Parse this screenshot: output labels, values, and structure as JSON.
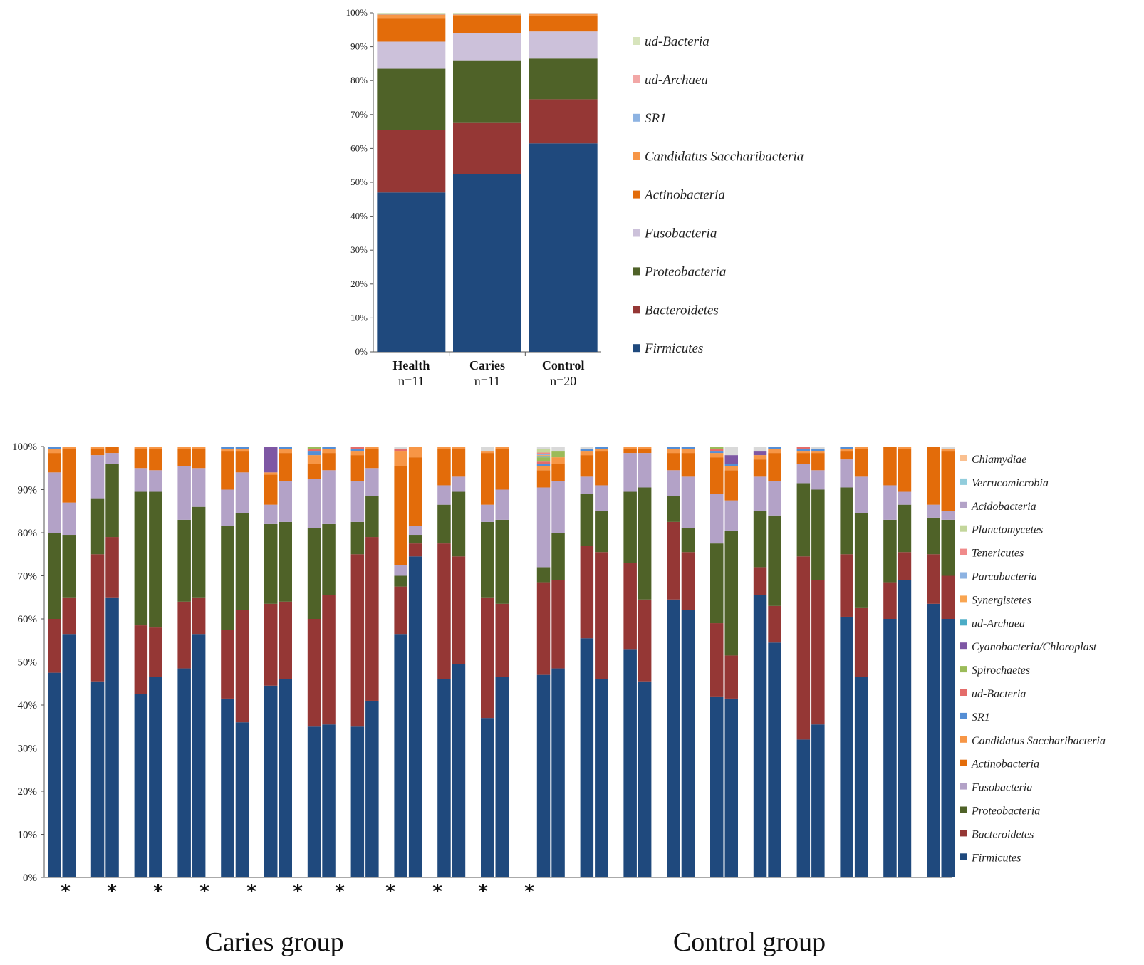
{
  "chart_data": [
    {
      "type": "bar",
      "stacked": true,
      "y_unit": "%",
      "ylim": [
        0,
        100
      ],
      "yticks": [
        "0%",
        "10%",
        "20%",
        "30%",
        "40%",
        "50%",
        "60%",
        "70%",
        "80%",
        "90%",
        "100%"
      ],
      "categories": [
        "Health",
        "Caries",
        "Control"
      ],
      "category_sublabels": [
        "n=11",
        "n=11",
        "n=20"
      ],
      "legend_placement": "right",
      "series": [
        {
          "name": "Firmicutes",
          "color": "#1f497d",
          "values": [
            47.0,
            52.5,
            61.5
          ]
        },
        {
          "name": "Bacteroidetes",
          "color": "#953735",
          "values": [
            18.5,
            15.0,
            13.0
          ]
        },
        {
          "name": "Proteobacteria",
          "color": "#4f6228",
          "values": [
            18.0,
            18.5,
            12.0
          ]
        },
        {
          "name": "Fusobacteria",
          "color": "#ccc1da",
          "values": [
            8.0,
            8.0,
            8.0
          ]
        },
        {
          "name": "Actinobacteria",
          "color": "#e36c0a",
          "values": [
            7.0,
            5.0,
            4.5
          ]
        },
        {
          "name": "Candidatus Saccharibacteria",
          "color": "#f79646",
          "values": [
            1.0,
            0.5,
            0.6
          ]
        },
        {
          "name": "SR1",
          "color": "#8db3e2",
          "values": [
            0.2,
            0.2,
            0.2
          ]
        },
        {
          "name": "ud-Archaea",
          "color": "#f2a7a6",
          "values": [
            0.1,
            0.1,
            0.1
          ]
        },
        {
          "name": "ud-Bacteria",
          "color": "#d7e4bc",
          "values": [
            0.2,
            0.2,
            0.1
          ]
        }
      ]
    },
    {
      "type": "bar",
      "stacked": true,
      "y_unit": "%",
      "ylim": [
        0,
        100
      ],
      "yticks": [
        "0%",
        "10%",
        "20%",
        "30%",
        "40%",
        "50%",
        "60%",
        "70%",
        "80%",
        "90%",
        "100%"
      ],
      "legend_placement": "right",
      "series_names": [
        "Firmicutes",
        "Bacteroidetes",
        "Proteobacteria",
        "Fusobacteria",
        "Actinobacteria",
        "Candidatus Saccharibacteria",
        "SR1",
        "ud-Bacteria",
        "Spirochaetes",
        "Cyanobacteria/Chloroplast",
        "ud-Archaea",
        "Synergistetes",
        "Parcubacteria",
        "Tenericutes",
        "Planctomycetes",
        "Acidobacteria",
        "Verrucomicrobia",
        "Chlamydiae"
      ],
      "series_colors": [
        "#1f497d",
        "#953735",
        "#4f6228",
        "#b3a2c7",
        "#e36c0a",
        "#f79646",
        "#558ed5",
        "#e46c6a",
        "#9bbb59",
        "#7e57a4",
        "#4bacc6",
        "#f9a551",
        "#8db3e2",
        "#f08a8a",
        "#c3d69b",
        "#b3a2c7",
        "#92cddc",
        "#fac090"
      ],
      "groups": [
        "Caries group",
        "Control group"
      ],
      "stars": [
        "*",
        "*",
        "*",
        "*",
        "*",
        "*",
        "*",
        "*",
        "*",
        "*",
        "*"
      ],
      "pairs": [
        {
          "group": 0,
          "bars": [
            [
              47.5,
              12.5,
              20,
              14,
              4.5,
              1,
              0.5
            ],
            [
              56.5,
              8.5,
              14.5,
              7.5,
              12.5,
              0.5,
              0
            ]
          ]
        },
        {
          "group": 0,
          "bars": [
            [
              45.5,
              29.5,
              13,
              10,
              1.5,
              0.5,
              0
            ],
            [
              65,
              14,
              17,
              2.5,
              1.5,
              0,
              0
            ]
          ]
        },
        {
          "group": 0,
          "bars": [
            [
              42.5,
              16,
              31,
              5.5,
              4.5,
              0.5,
              0
            ],
            [
              46.5,
              11.5,
              31.5,
              5,
              5,
              0.5,
              0
            ]
          ]
        },
        {
          "group": 0,
          "bars": [
            [
              48.5,
              15.5,
              19,
              12.5,
              4,
              0.5,
              0
            ],
            [
              56.5,
              8.5,
              21,
              9,
              4.5,
              0.5,
              0
            ]
          ]
        },
        {
          "group": 0,
          "bars": [
            [
              41.5,
              16,
              24,
              8.5,
              9,
              0.5,
              0.5
            ],
            [
              36,
              26,
              22.5,
              9.5,
              5,
              0.5,
              0.5
            ]
          ]
        },
        {
          "group": 0,
          "bars": [
            [
              44.5,
              19,
              18.5,
              4.5,
              7,
              0.5,
              0,
              0,
              0,
              6
            ],
            [
              46,
              18,
              18.5,
              9.5,
              6.5,
              1,
              0.5
            ]
          ]
        },
        {
          "group": 0,
          "bars": [
            [
              35,
              25,
              21,
              11.5,
              3.5,
              2,
              1,
              0.5,
              0.5
            ],
            [
              35.5,
              30,
              16.5,
              12.5,
              4,
              1,
              0.5
            ]
          ]
        },
        {
          "group": 0,
          "bars": [
            [
              35,
              40,
              7.5,
              9.5,
              6,
              1,
              0.5,
              0.5
            ],
            [
              41,
              38,
              9.5,
              6.5,
              4.5,
              0.5,
              0
            ]
          ]
        },
        {
          "group": 0,
          "bars": [
            [
              56.5,
              11,
              2.5,
              2.5,
              23,
              3.5,
              0,
              0.5
            ],
            [
              74.5,
              3,
              2,
              2,
              16,
              2.5,
              0
            ]
          ]
        },
        {
          "group": 0,
          "bars": [
            [
              46,
              31.5,
              9,
              4.5,
              8.5,
              0.5,
              0
            ],
            [
              49.5,
              25,
              15,
              3.5,
              6.5,
              0.5,
              0
            ]
          ]
        },
        {
          "group": 0,
          "bars": [
            [
              37,
              28,
              17.5,
              4,
              12,
              0.5,
              0
            ],
            [
              46.5,
              17,
              19.5,
              7,
              9.5,
              0.5,
              0
            ]
          ]
        },
        {
          "group": 1,
          "bars": [
            [
              47,
              21.5,
              3.5,
              18.5,
              4,
              1,
              0.5,
              0.5,
              1,
              0,
              0.3,
              0.2,
              0.3,
              0.3,
              0.8
            ],
            [
              48.5,
              20.5,
              11,
              12,
              4,
              1.5,
              0,
              0,
              1.5
            ]
          ]
        },
        {
          "group": 1,
          "bars": [
            [
              55.5,
              21.5,
              12,
              4,
              5,
              1,
              0.5
            ],
            [
              46,
              29.5,
              9.5,
              6,
              8,
              0.5,
              0.5
            ]
          ]
        },
        {
          "group": 1,
          "bars": [
            [
              53,
              20,
              16.5,
              9,
              1,
              0.5,
              0
            ],
            [
              45.5,
              19,
              26,
              8,
              1,
              0.5,
              0
            ]
          ]
        },
        {
          "group": 1,
          "bars": [
            [
              64.5,
              18,
              6,
              6,
              4,
              1,
              0.5
            ],
            [
              62,
              13.5,
              5.5,
              12,
              5.5,
              1,
              0.5
            ]
          ]
        },
        {
          "group": 1,
          "bars": [
            [
              42,
              17,
              18.5,
              11.5,
              8.5,
              1,
              0.5,
              0.5,
              0.5
            ],
            [
              41.5,
              10,
              29,
              7,
              7,
              1,
              0.5,
              0,
              0,
              2
            ]
          ]
        },
        {
          "group": 1,
          "bars": [
            [
              65.5,
              6.5,
              13,
              8,
              4,
              1,
              0,
              0,
              0,
              1
            ],
            [
              54.5,
              8.5,
              21,
              8,
              6.5,
              1,
              0.5
            ]
          ]
        },
        {
          "group": 1,
          "bars": [
            [
              32,
              42.5,
              17,
              4.5,
              2.5,
              0.5,
              0.5,
              0.5
            ],
            [
              35.5,
              33.5,
              21,
              4.5,
              4,
              0.5,
              0.5
            ]
          ]
        },
        {
          "group": 1,
          "bars": [
            [
              60.5,
              14.5,
              15.5,
              6.5,
              2,
              0.5,
              0.5
            ],
            [
              46.5,
              16,
              22,
              8.5,
              6.5,
              0.5,
              0
            ]
          ]
        },
        {
          "group": 1,
          "bars": [
            [
              60,
              8.5,
              14.5,
              8,
              9,
              0,
              0
            ],
            [
              69,
              6.5,
              11,
              3,
              10,
              0.5,
              0
            ]
          ]
        },
        {
          "group": 1,
          "bars": [
            [
              63.5,
              11.5,
              8.5,
              3,
              13.5,
              0,
              0
            ],
            [
              60,
              10,
              13,
              2,
              14,
              0.5,
              0
            ]
          ]
        }
      ]
    }
  ]
}
